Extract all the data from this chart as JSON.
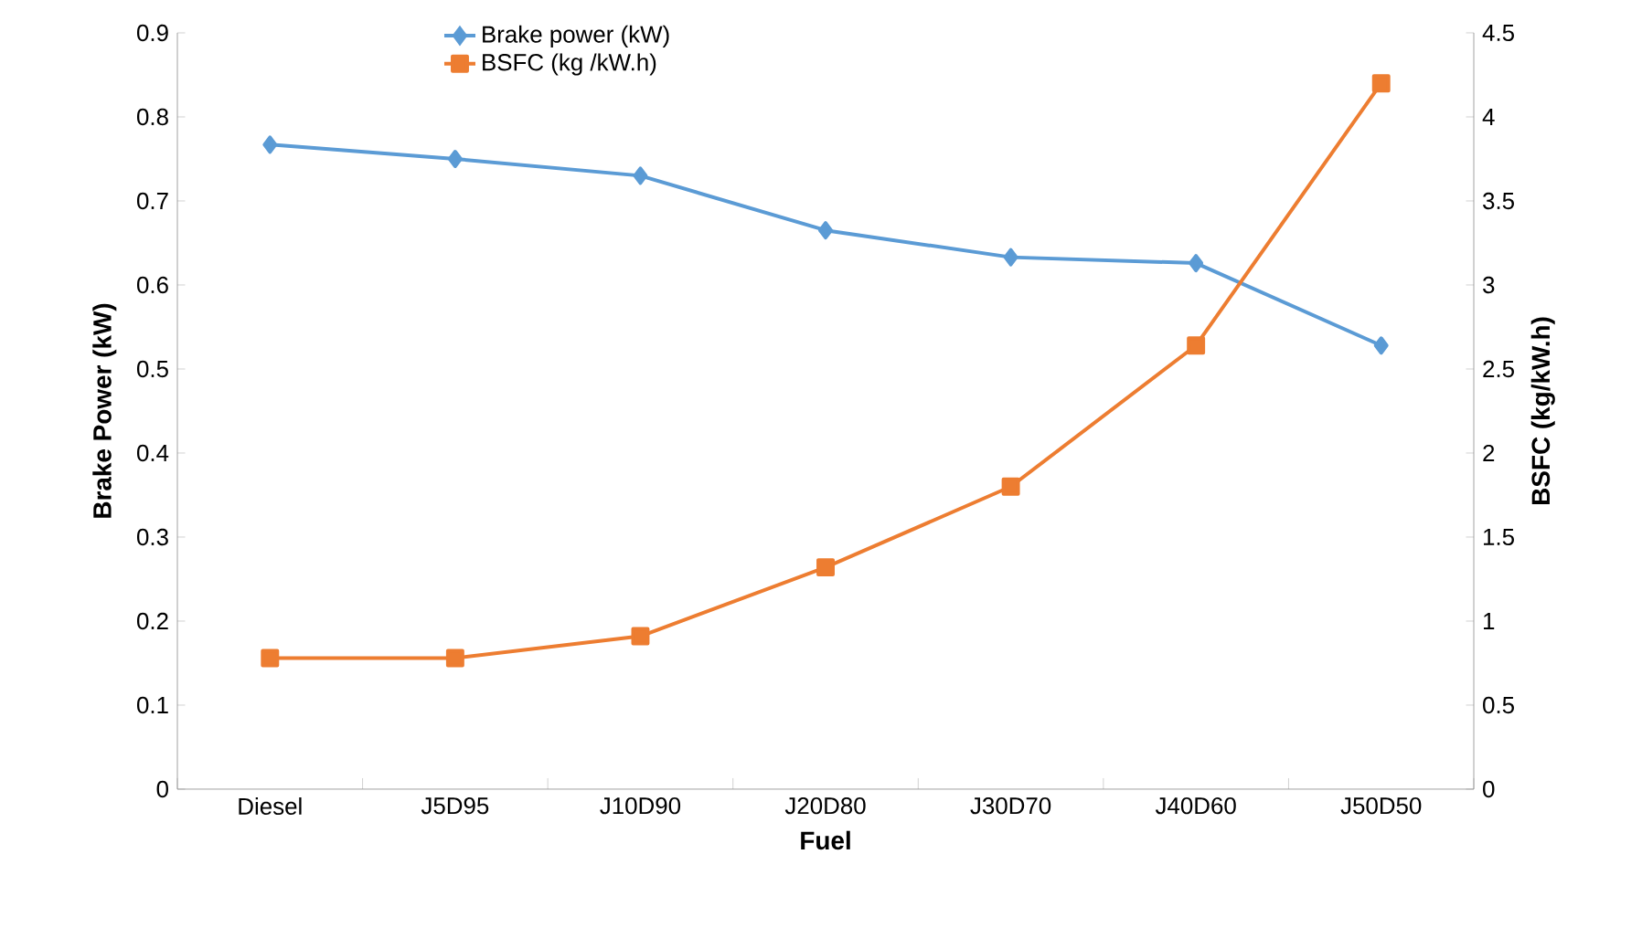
{
  "chart_data": {
    "type": "line",
    "xlabel": "Fuel",
    "ylabel": "Brake Power (kW)",
    "y2label": "BSFC (kg/kW.h)",
    "categories": [
      "Diesel",
      "J5D95",
      "J10D90",
      "J20D80",
      "J30D70",
      "J40D60",
      "J50D50"
    ],
    "series": [
      {
        "name": "Brake power (kW)",
        "color": "#5b9bd5",
        "marker": "diamond",
        "values": [
          0.767,
          0.75,
          0.73,
          0.665,
          0.633,
          0.626,
          0.528
        ]
      },
      {
        "name": "BSFC (kg /kW.h)",
        "color": "#ed7d31",
        "marker": "square",
        "axis": "y2",
        "values": [
          0.78,
          0.78,
          0.91,
          1.32,
          1.8,
          2.64,
          4.2
        ]
      }
    ],
    "ylim": [
      0,
      0.9
    ],
    "yticks": [
      0,
      0.1,
      0.2,
      0.3,
      0.4,
      0.5,
      0.6,
      0.7,
      0.8,
      0.9
    ],
    "y2lim": [
      0,
      4.5
    ],
    "y2ticks": [
      0,
      0.5,
      1,
      1.5,
      2,
      2.5,
      3,
      3.5,
      4,
      4.5
    ],
    "grid": false,
    "legend": "top",
    "line_style": "solid"
  }
}
